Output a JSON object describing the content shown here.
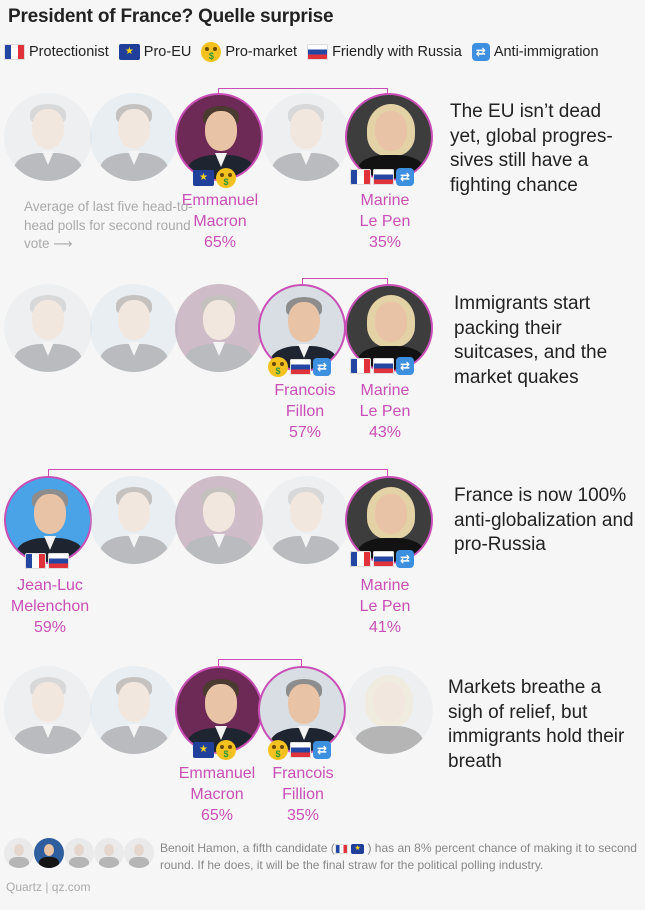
{
  "title": "President of France? Quelle surprise",
  "legend": [
    {
      "icon": "flag-fr",
      "label": "Protectionist"
    },
    {
      "icon": "flag-eu",
      "label": "Pro-EU"
    },
    {
      "icon": "money-face",
      "label": "Pro-market"
    },
    {
      "icon": "flag-ru",
      "label": "Friendly with Russia"
    },
    {
      "icon": "immigration",
      "label": "Anti-immigration"
    }
  ],
  "avg_note": "Average of last five head-to-head polls for second round vote",
  "scenarios": [
    {
      "left": {
        "first": "Emmanuel",
        "last": "Macron",
        "pct": "65%"
      },
      "right": {
        "first": "Marine",
        "last": "Le Pen",
        "pct": "35%"
      },
      "note": "The EU isn’t dead yet, global progres-sives still have a fighting chance"
    },
    {
      "left": {
        "first": "Francois",
        "last": "Fillon",
        "pct": "57%"
      },
      "right": {
        "first": "Marine",
        "last": "Le Pen",
        "pct": "43%"
      },
      "note": "Immigrants start packing their suitcases, and the market quakes"
    },
    {
      "left": {
        "first": "Jean-Luc",
        "last": "Melenchon",
        "pct": "59%"
      },
      "right": {
        "first": "Marine",
        "last": "Le Pen",
        "pct": "41%"
      },
      "note": "France is now 100% anti-globalization and pro-Russia"
    },
    {
      "left": {
        "first": "Emmanuel",
        "last": "Macron",
        "pct": "65%"
      },
      "right": {
        "first": "Francois",
        "last": "Fillion",
        "pct": "35%"
      },
      "note": "Markets breathe a sigh of relief, but immigrants hold their breath"
    }
  ],
  "footnote": {
    "before": "Benoit Hamon, a fifth candidate (",
    "after": ") has an 8% percent chance of making it to second round. If he does, it will be the final straw for the political polling industry."
  },
  "source": "Quartz | qz.com",
  "colors": {
    "accent": "#c94fb6"
  }
}
